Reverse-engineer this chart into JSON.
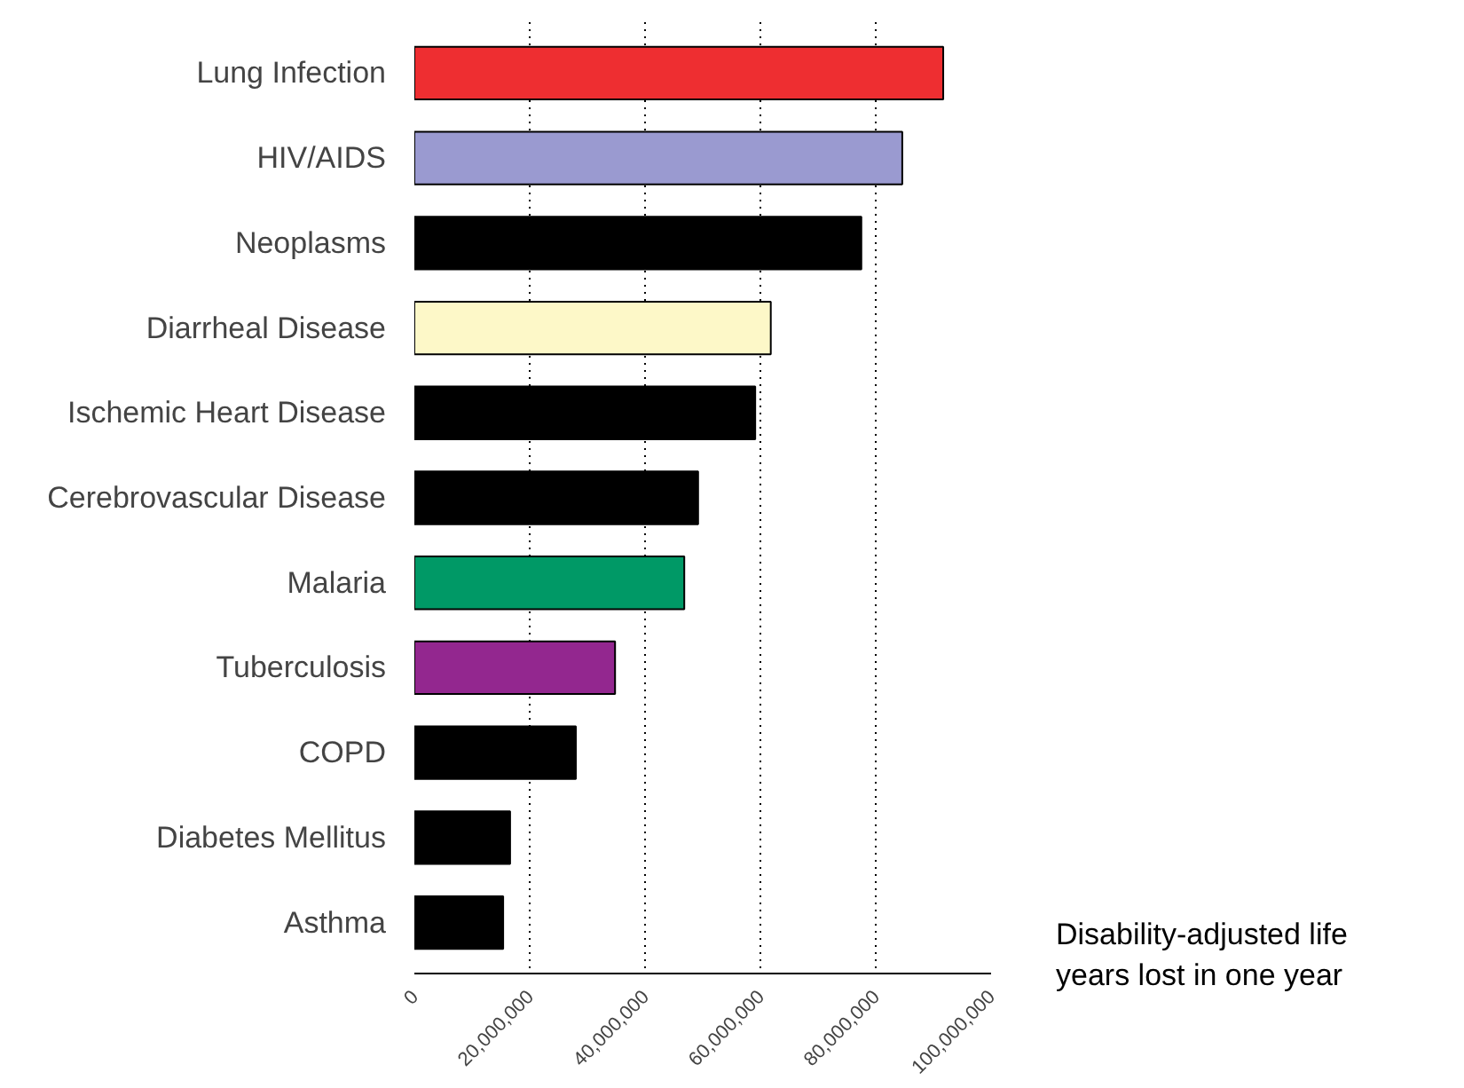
{
  "chart_data": {
    "type": "bar",
    "orientation": "horizontal",
    "categories": [
      "Lung Infection",
      "HIV/AIDS",
      "Neoplasms",
      "Diarrheal Disease",
      "Ischemic Heart Disease",
      "Cerebrovascular Disease",
      "Malaria",
      "Tuberculosis",
      "COPD",
      "Diabetes Mellitus",
      "Asthma"
    ],
    "values": [
      91700000,
      84600000,
      77500000,
      61800000,
      59100000,
      49200000,
      46800000,
      34800000,
      28000000,
      16600000,
      15400000
    ],
    "colors": [
      "#ee2e31",
      "#9a9ad0",
      "#000000",
      "#fdf8c8",
      "#000000",
      "#000000",
      "#009966",
      "#93278f",
      "#000000",
      "#000000",
      "#000000"
    ],
    "xlim": [
      0,
      100000000
    ],
    "xticks": [
      {
        "value": 0,
        "label": "0"
      },
      {
        "value": 20000000,
        "label": "20,000,000"
      },
      {
        "value": 40000000,
        "label": "40,000,000"
      },
      {
        "value": 60000000,
        "label": "60,000,000"
      },
      {
        "value": 80000000,
        "label": "80,000,000"
      },
      {
        "value": 100000000,
        "label": "100,000,000"
      }
    ],
    "grid": "x",
    "annotations": [
      "Disability-adjusted life years lost in one year"
    ]
  }
}
